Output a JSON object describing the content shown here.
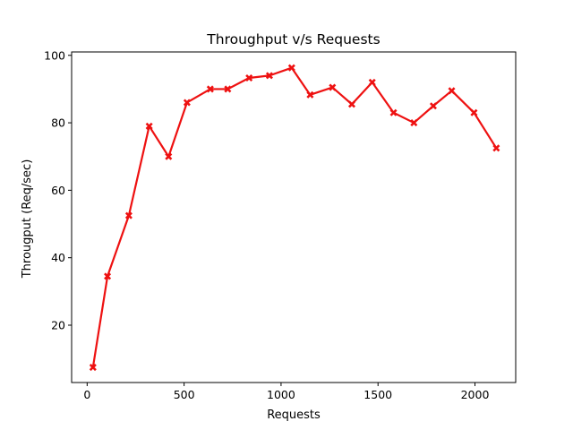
{
  "chart_data": {
    "type": "line",
    "title": "Throughput v/s Requests",
    "xlabel": "Requests",
    "ylabel": "Througput (Req/sec)",
    "xlim": [
      -80,
      2210
    ],
    "ylim": [
      3,
      101
    ],
    "xticks": [
      0,
      500,
      1000,
      1500,
      2000
    ],
    "yticks": [
      20,
      40,
      60,
      80,
      100
    ],
    "grid": false,
    "series": [
      {
        "color": "#ee1111",
        "marker": "X",
        "x": [
          30,
          105,
          215,
          320,
          420,
          515,
          635,
          725,
          835,
          940,
          1055,
          1150,
          1265,
          1365,
          1470,
          1580,
          1685,
          1785,
          1880,
          1995,
          2110
        ],
        "y": [
          7.5,
          34.5,
          52.5,
          79,
          70,
          86,
          90,
          90,
          93.3,
          94,
          96.3,
          88.3,
          90.5,
          85.5,
          92,
          83,
          80,
          85,
          89.5,
          83,
          72.5
        ]
      }
    ]
  }
}
